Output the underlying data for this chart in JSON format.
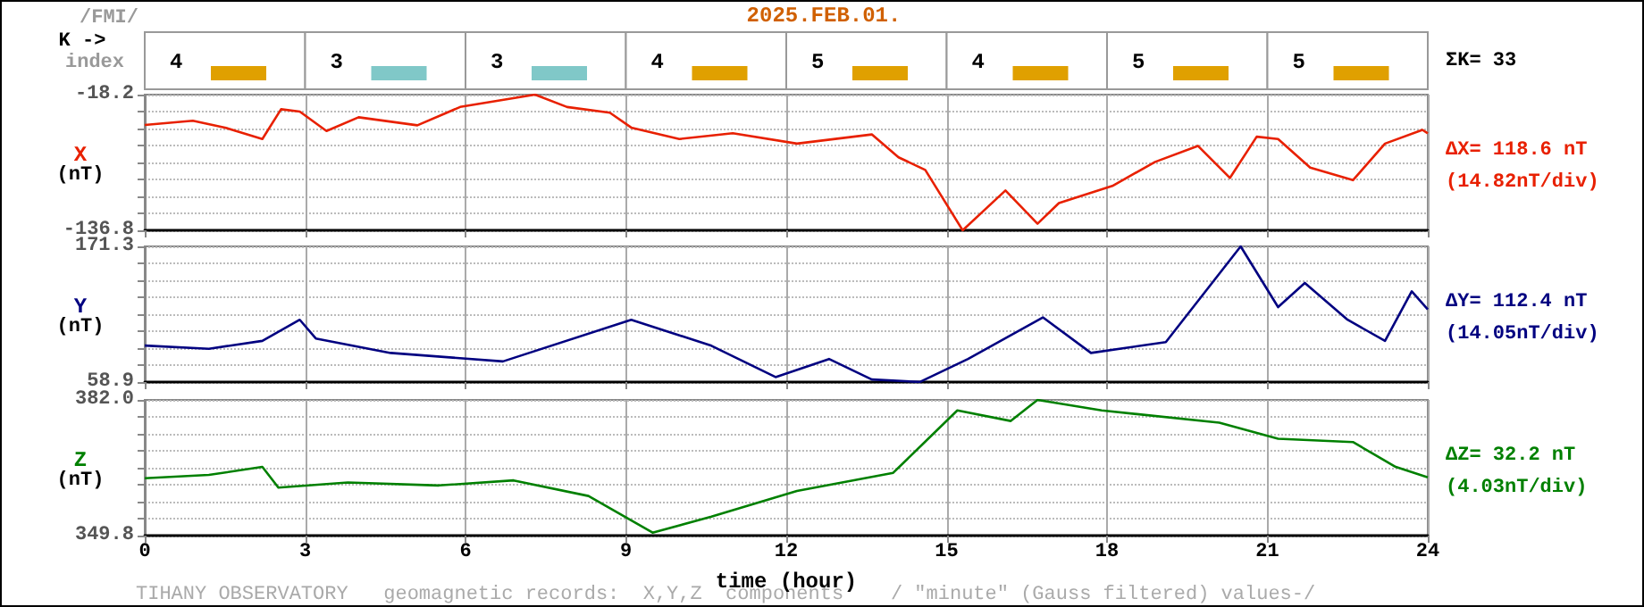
{
  "chart_data": [
    {
      "type": "other",
      "title": "2025.FEB.01.",
      "categories": [
        null,
        null,
        null,
        null,
        null,
        null,
        null,
        null
      ],
      "values": [
        4,
        3,
        3,
        4,
        5,
        4,
        5,
        5
      ],
      "colors": [
        "#e0a000",
        "#80c8c8",
        "#80c8c8",
        "#e0a000",
        "#e0a000",
        "#e0a000",
        "#e0a000",
        "#e0a000"
      ],
      "data_labels": true,
      "annotations": [
        "/FMI/",
        "K ->",
        "index",
        "ΣK= 33"
      ]
    },
    {
      "type": "line",
      "ylabel": "X (nT)",
      "xlim": [
        0,
        24
      ],
      "xticks": [
        0,
        3,
        6,
        9,
        12,
        15,
        18,
        21,
        24
      ],
      "ylim": [
        -136.8,
        -18.2
      ],
      "yticks": [
        -136.8,
        {
          "value": -121.98,
          "label": null
        },
        {
          "value": -107.16,
          "label": null
        },
        {
          "value": -92.34,
          "label": null
        },
        {
          "value": -77.5,
          "label": null
        },
        {
          "value": -62.68,
          "label": null
        },
        {
          "value": -47.86,
          "label": null
        },
        {
          "value": -33.04,
          "label": null
        },
        -18.2
      ],
      "grid": true,
      "tick_labels": "y",
      "annotations": [
        "ΔX= 118.6 nT",
        "(14.82nT/div)"
      ],
      "x": [
        0,
        0.9,
        1.5,
        2.2,
        2.55,
        2.9,
        3.4,
        4,
        5.1,
        5.9,
        7.3,
        7.9,
        8.7,
        9.1,
        10,
        11,
        12.2,
        13.6,
        14.1,
        14.6,
        15.3,
        16.1,
        16.7,
        17.1,
        18.1,
        18.9,
        19.7,
        20.3,
        20.8,
        21.2,
        21.8,
        22.6,
        23.2,
        23.9,
        24
      ],
      "series": [
        {
          "color": "#e82000",
          "values": [
            -44.7,
            -41,
            -47,
            -57,
            -31,
            -33,
            -50,
            -38,
            -45,
            -29,
            -18.2,
            -29,
            -34,
            -47,
            -57,
            -52,
            -61,
            -53,
            -73,
            -84,
            -136.8,
            -102,
            -131,
            -113,
            -98,
            -77,
            -63,
            -91,
            -55,
            -57,
            -82,
            -93,
            -61,
            -49,
            -52
          ]
        }
      ]
    },
    {
      "type": "line",
      "ylabel": "Y (nT)",
      "xlim": [
        0,
        24
      ],
      "xticks": [
        0,
        3,
        6,
        9,
        12,
        15,
        18,
        21,
        24
      ],
      "ylim": [
        58.9,
        171.3
      ],
      "yticks": [
        58.9,
        {
          "value": 72.95,
          "label": null
        },
        {
          "value": 87,
          "label": null
        },
        {
          "value": 101.05,
          "label": null
        },
        {
          "value": 115.1,
          "label": null
        },
        {
          "value": 129.15,
          "label": null
        },
        {
          "value": 143.2,
          "label": null
        },
        {
          "value": 157.25,
          "label": null
        },
        171.3
      ],
      "grid": true,
      "tick_labels": "y",
      "annotations": [
        "ΔY= 112.4 nT",
        "(14.05nT/div)"
      ],
      "x": [
        0,
        1.2,
        2.2,
        2.9,
        3.2,
        4.6,
        6.7,
        9.1,
        10.6,
        11.8,
        12.8,
        13.6,
        14.5,
        15.4,
        16.8,
        17.7,
        19.1,
        20.5,
        21.2,
        21.7,
        22.5,
        23.2,
        23.7,
        24
      ],
      "series": [
        {
          "color": "#000080",
          "values": [
            89.1,
            86.5,
            93,
            110.5,
            95,
            83,
            76,
            110.5,
            89,
            63,
            78,
            61,
            59,
            78,
            112.5,
            83,
            92,
            171.3,
            121,
            141,
            110.5,
            93,
            134,
            119
          ]
        }
      ]
    },
    {
      "type": "line",
      "ylabel": "Z (nT)",
      "xlabel": "time (hour)",
      "xlim": [
        0,
        24
      ],
      "xticks": [
        0,
        3,
        6,
        9,
        12,
        15,
        18,
        21,
        24
      ],
      "ylim": [
        349.8,
        382
      ],
      "yticks": [
        349.8,
        {
          "value": 353.83,
          "label": null
        },
        {
          "value": 357.85,
          "label": null
        },
        {
          "value": 361.88,
          "label": null
        },
        {
          "value": 365.9,
          "label": null
        },
        {
          "value": 369.93,
          "label": null
        },
        {
          "value": 373.95,
          "label": null
        },
        {
          "value": 377.98,
          "label": null
        },
        {
          "value": 382,
          "label": "382.0"
        }
      ],
      "grid": true,
      "annotations": [
        "ΔZ= 32.2 nT",
        "(4.03nT/div)",
        "TIHANY OBSERVATORY   geomagnetic records:  X,Y,Z  components    / \"minute\" (Gauss filtered) values-/"
      ],
      "x": [
        0,
        1.2,
        2.2,
        2.5,
        3.8,
        5.5,
        6.9,
        8.3,
        9.5,
        10.6,
        12.2,
        14,
        15.2,
        16.2,
        16.7,
        17.9,
        20.1,
        21.2,
        22.6,
        23.4,
        24
      ],
      "series": [
        {
          "color": "#008000",
          "values": [
            363.4,
            364.2,
            366.1,
            361.2,
            362.4,
            361.7,
            362.9,
            359.2,
            350.5,
            354.3,
            360.4,
            364.7,
            379.5,
            377,
            382,
            379.5,
            376.6,
            372.8,
            372,
            366.1,
            363.6
          ]
        }
      ]
    }
  ]
}
